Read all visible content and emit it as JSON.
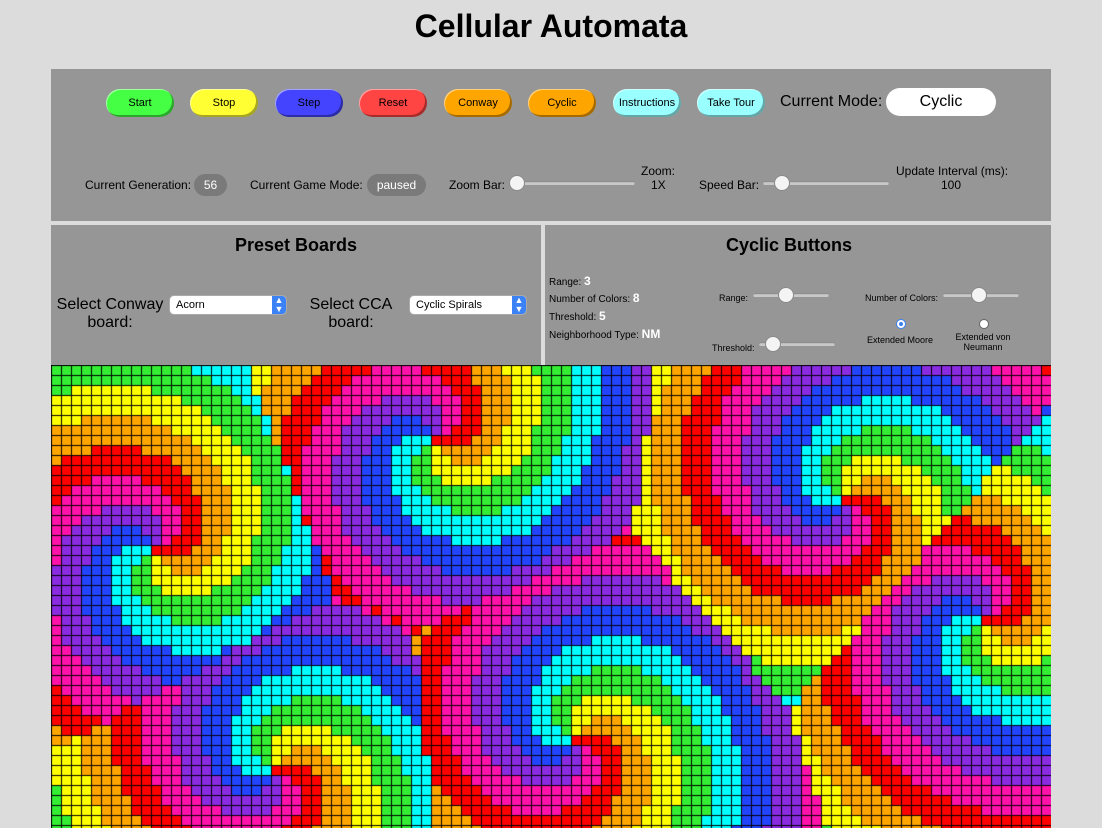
{
  "title": "Cellular Automata",
  "toolbar": {
    "buttons": [
      {
        "label": "Start",
        "color": "#44ff44"
      },
      {
        "label": "Stop",
        "color": "#ffff33"
      },
      {
        "label": "Step",
        "color": "#4444ff"
      },
      {
        "label": "Reset",
        "color": "#ff4444"
      },
      {
        "label": "Conway",
        "color": "#ffa500"
      },
      {
        "label": "Cyclic",
        "color": "#ffa500"
      },
      {
        "label": "Instructions",
        "color": "#99ffff"
      },
      {
        "label": "Take Tour",
        "color": "#99ffff"
      }
    ],
    "current_mode_label": "Current Mode:",
    "current_mode_value": "Cyclic"
  },
  "status": {
    "generation_label": "Current Generation:",
    "generation_value": "56",
    "game_mode_label": "Current Game Mode:",
    "game_mode_value": "paused",
    "zoom_bar_label": "Zoom Bar:",
    "zoom_label": "Zoom:",
    "zoom_value": "1X",
    "zoom_slider_fraction": 0.0,
    "speed_bar_label": "Speed Bar:",
    "interval_label": "Update Interval (ms):",
    "interval_value": "100",
    "speed_slider_fraction": 0.1
  },
  "preset": {
    "heading": "Preset Boards",
    "conway_label_1": "Select Conway",
    "conway_label_2": "board:",
    "conway_selected": "Acorn",
    "cca_label_1": "Select CCA",
    "cca_label_2": "board:",
    "cca_selected": "Cyclic Spirals"
  },
  "cyclic": {
    "heading": "Cyclic Buttons",
    "range_label": "Range:",
    "range_value": "3",
    "colors_label": "Number of Colors:",
    "colors_value": "8",
    "threshold_label": "Threshold:",
    "threshold_value": "5",
    "neighborhood_label": "Neighborhood Type:",
    "neighborhood_value": "NM",
    "range_slider_label": "Range:",
    "range_slider_fraction": 0.4,
    "colors_slider_label": "Number of Colors:",
    "colors_slider_fraction": 0.45,
    "threshold_slider_label": "Threshold:",
    "threshold_slider_fraction": 0.1,
    "radio_moore": "Extended Moore",
    "radio_neumann_1": "Extended von",
    "radio_neumann_2": "Neumann",
    "selected_neighborhood": "Extended Moore"
  },
  "board": {
    "palette": [
      "#ff0000",
      "#ffa500",
      "#ffff00",
      "#33ee33",
      "#00ffff",
      "#2244ff",
      "#8a2be2",
      "#ff11aa"
    ],
    "grid_line_color": "#000000"
  }
}
